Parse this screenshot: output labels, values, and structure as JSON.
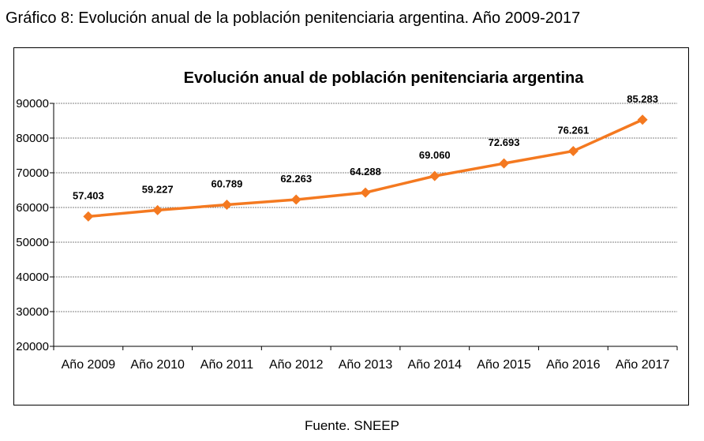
{
  "caption": "Gráfico 8: Evolución anual de la población penitenciaria argentina. Año 2009-2017",
  "source": "Fuente. SNEEP",
  "colors": {
    "line": "#F47920",
    "grid": "#808080",
    "axis": "#000000"
  },
  "chart_data": {
    "type": "line",
    "title": "Evolución anual de población penitenciaria argentina",
    "xlabel": "",
    "ylabel": "",
    "categories": [
      "Año 2009",
      "Año 2010",
      "Año 2011",
      "Año 2012",
      "Año 2013",
      "Año 2014",
      "Año 2015",
      "Año 2016",
      "Año 2017"
    ],
    "values": [
      57403,
      59227,
      60789,
      62263,
      64288,
      69060,
      72693,
      76261,
      85283
    ],
    "data_labels": [
      "57.403",
      "59.227",
      "60.789",
      "62.263",
      "64.288",
      "69.060",
      "72.693",
      "76.261",
      "85.283"
    ],
    "yticks": [
      "20000",
      "30000",
      "40000",
      "50000",
      "60000",
      "70000",
      "80000",
      "90000"
    ],
    "ylim": [
      20000,
      90000
    ],
    "grid": "horizontal",
    "legend": "none",
    "marker": "diamond"
  }
}
